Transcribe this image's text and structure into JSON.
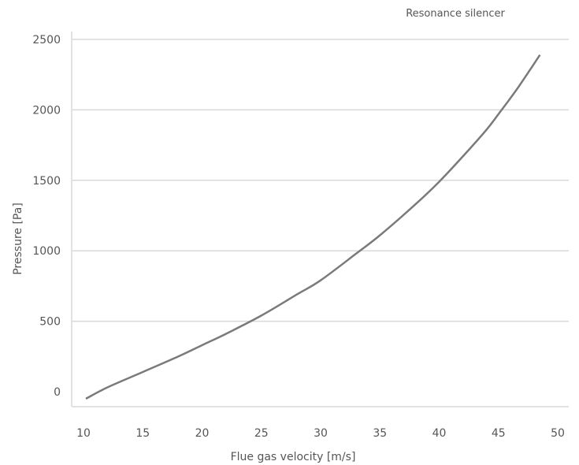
{
  "chart_data": {
    "type": "line",
    "title": "",
    "xlabel": "Flue gas velocity [m/s]",
    "ylabel": "Pressure [Pa]",
    "xlim": [
      10,
      50
    ],
    "ylim": [
      0,
      2500
    ],
    "xticks": [
      10,
      15,
      20,
      25,
      30,
      35,
      40,
      45,
      50
    ],
    "yticks": [
      0,
      500,
      1000,
      1500,
      2000,
      2500
    ],
    "grid": true,
    "legend_position": "top-right",
    "line_color": "#7a7a7a",
    "series": [
      {
        "name": "Resonance silencer",
        "x": [
          10.2,
          12.0,
          15.0,
          18.0,
          20.0,
          22.0,
          25.0,
          28.0,
          30.0,
          33.0,
          35.0,
          38.0,
          40.0,
          42.0,
          44.0,
          45.0,
          46.5,
          48.5
        ],
        "y": [
          -50,
          30,
          140,
          250,
          330,
          410,
          540,
          690,
          790,
          980,
          1110,
          1330,
          1490,
          1670,
          1860,
          1970,
          2140,
          2390
        ]
      }
    ]
  }
}
